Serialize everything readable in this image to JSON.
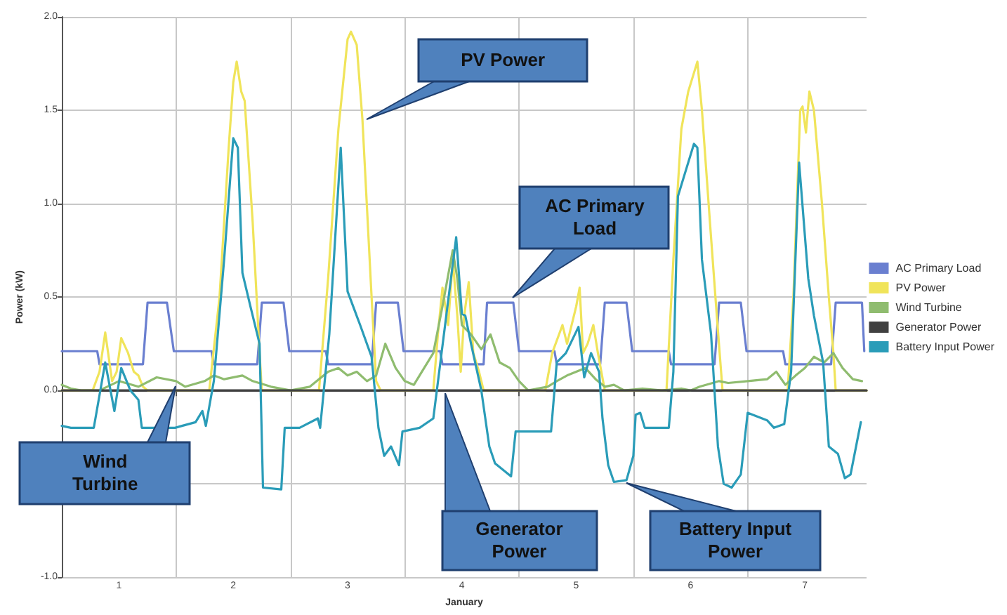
{
  "chart_data": {
    "type": "line",
    "xlabel": "January",
    "ylabel": "Power (kW)",
    "xlim": [
      0.5,
      7.54
    ],
    "xticks": [
      1,
      {
        "value": 1.5,
        "label": null
      },
      2,
      {
        "value": 2.5,
        "label": null
      },
      3,
      {
        "value": 3.5,
        "label": null
      },
      4,
      {
        "value": 4.5,
        "label": null
      },
      5,
      {
        "value": 5.5,
        "label": null
      },
      6,
      {
        "value": 6.5,
        "label": null
      },
      7
    ],
    "ylim": [
      -1,
      2
    ],
    "yticks": [
      {
        "value": -1,
        "label": "-1.0"
      },
      {
        "value": -0.5,
        "label": null
      },
      {
        "value": 0,
        "label": "0.0"
      },
      {
        "value": 0.5,
        "label": "0.5"
      },
      {
        "value": 1,
        "label": "1.0"
      },
      {
        "value": 1.5,
        "label": "1.5"
      },
      {
        "value": 2,
        "label": "2.0"
      }
    ],
    "grid": true,
    "legend": "right",
    "marker": "none",
    "line_style": "solid",
    "series": [
      {
        "name": "AC Primary Load",
        "color": "#6a7fd0",
        "x": [
          0.5,
          0.81,
          0.83,
          1.21,
          1.25,
          1.42,
          1.48,
          1.81,
          1.83,
          2.21,
          2.25,
          2.44,
          2.49,
          2.81,
          2.83,
          3.21,
          3.25,
          3.44,
          3.49,
          3.81,
          3.83,
          4.19,
          4.22,
          4.45,
          4.5,
          4.81,
          4.83,
          5.21,
          5.25,
          5.44,
          5.49,
          5.81,
          5.83,
          6.21,
          6.25,
          6.44,
          6.49,
          6.81,
          6.83,
          7.23,
          7.27,
          7.5,
          7.52
        ],
        "values": [
          0.21,
          0.21,
          0.14,
          0.14,
          0.47,
          0.47,
          0.21,
          0.21,
          0.14,
          0.14,
          0.47,
          0.47,
          0.21,
          0.21,
          0.14,
          0.14,
          0.47,
          0.47,
          0.21,
          0.21,
          0.14,
          0.14,
          0.47,
          0.47,
          0.21,
          0.21,
          0.14,
          0.14,
          0.47,
          0.47,
          0.21,
          0.21,
          0.14,
          0.14,
          0.47,
          0.47,
          0.21,
          0.21,
          0.14,
          0.14,
          0.47,
          0.47,
          0.21
        ]
      },
      {
        "name": "PV Power",
        "color": "#f0e45a",
        "x": [
          0.5,
          0.77,
          0.83,
          0.88,
          0.94,
          0.98,
          1.02,
          1.08,
          1.13,
          1.17,
          1.21,
          1.25,
          1.79,
          1.88,
          1.96,
          2.0,
          2.03,
          2.07,
          2.1,
          2.17,
          2.23,
          2.25,
          2.75,
          2.83,
          2.92,
          3.0,
          3.03,
          3.08,
          3.13,
          3.21,
          3.25,
          3.29,
          3.75,
          3.79,
          3.83,
          3.88,
          3.92,
          3.96,
          3.99,
          4.02,
          4.06,
          4.1,
          4.15,
          4.19,
          4.73,
          4.79,
          4.88,
          4.92,
          5.0,
          5.03,
          5.06,
          5.1,
          5.15,
          5.19,
          5.25,
          5.79,
          5.85,
          5.92,
          5.98,
          6.06,
          6.1,
          6.17,
          6.23,
          6.28,
          6.85,
          6.9,
          6.96,
          6.98,
          7.01,
          7.04,
          7.08,
          7.15,
          7.21,
          7.25,
          7.27,
          7.54
        ],
        "values": [
          0,
          0,
          0.1,
          0.31,
          0.05,
          0.1,
          0.28,
          0.2,
          0.1,
          0.08,
          0.02,
          0,
          0,
          0.5,
          1.3,
          1.65,
          1.76,
          1.6,
          1.55,
          0.9,
          0.2,
          0,
          0,
          0.6,
          1.4,
          1.88,
          1.92,
          1.85,
          1.45,
          0.5,
          0.05,
          0,
          0,
          0.3,
          0.55,
          0.35,
          0.7,
          0.4,
          0.1,
          0.4,
          0.58,
          0.2,
          0.1,
          0,
          0,
          0.2,
          0.35,
          0.25,
          0.45,
          0.55,
          0.2,
          0.25,
          0.35,
          0.2,
          0,
          0,
          0.7,
          1.4,
          1.6,
          1.76,
          1.5,
          0.9,
          0.4,
          0,
          0,
          0.5,
          1.5,
          1.52,
          1.38,
          1.6,
          1.5,
          1,
          0.5,
          0.2,
          0,
          0
        ]
      },
      {
        "name": "Wind Turbine",
        "color": "#8fbc6f",
        "x": [
          0.5,
          0.58,
          0.67,
          0.83,
          1,
          1.17,
          1.33,
          1.5,
          1.58,
          1.75,
          1.83,
          1.92,
          2.08,
          2.17,
          2.33,
          2.5,
          2.67,
          2.83,
          2.92,
          3,
          3.08,
          3.17,
          3.25,
          3.33,
          3.42,
          3.5,
          3.58,
          3.67,
          3.75,
          3.83,
          3.92,
          3.96,
          4,
          4.08,
          4.17,
          4.25,
          4.33,
          4.42,
          4.5,
          4.58,
          4.75,
          4.83,
          4.92,
          5,
          5.08,
          5.17,
          5.25,
          5.33,
          5.42,
          5.58,
          5.75,
          5.92,
          6,
          6.08,
          6.25,
          6.33,
          6.5,
          6.67,
          6.75,
          6.83,
          6.92,
          7,
          7.08,
          7.17,
          7.25,
          7.33,
          7.42,
          7.5
        ],
        "values": [
          0.03,
          0.01,
          0,
          0,
          0.05,
          0.02,
          0.07,
          0.05,
          0.02,
          0.05,
          0.08,
          0.06,
          0.08,
          0.05,
          0.02,
          0,
          0.02,
          0.1,
          0.12,
          0.08,
          0.1,
          0.05,
          0.08,
          0.25,
          0.12,
          0.05,
          0.03,
          0.12,
          0.2,
          0.45,
          0.75,
          0.6,
          0.35,
          0.3,
          0.22,
          0.3,
          0.15,
          0.12,
          0.05,
          0,
          0.02,
          0.05,
          0.08,
          0.1,
          0.12,
          0.06,
          0.02,
          0.03,
          0,
          0.01,
          0,
          0.01,
          0,
          0.02,
          0.05,
          0.04,
          0.05,
          0.06,
          0.1,
          0.03,
          0.08,
          0.12,
          0.18,
          0.15,
          0.2,
          0.12,
          0.06,
          0.05
        ]
      },
      {
        "name": "Generator Power",
        "color": "#404040",
        "x": [
          0.5,
          7.54
        ],
        "values": [
          0,
          0
        ]
      },
      {
        "name": "Battery Input Power",
        "color": "#2a9cb8",
        "x": [
          0.5,
          0.58,
          0.78,
          0.88,
          0.96,
          1.02,
          1.1,
          1.17,
          1.2,
          1.49,
          1.67,
          1.73,
          1.76,
          1.83,
          1.92,
          2.0,
          2.04,
          2.08,
          2.15,
          2.23,
          2.26,
          2.42,
          2.45,
          2.58,
          2.74,
          2.76,
          2.84,
          2.94,
          3.0,
          3.11,
          3.21,
          3.27,
          3.32,
          3.38,
          3.45,
          3.48,
          3.63,
          3.75,
          3.95,
          4.0,
          4.03,
          4.08,
          4.17,
          4.24,
          4.29,
          4.43,
          4.47,
          4.78,
          4.83,
          4.91,
          5.02,
          5.07,
          5.13,
          5.2,
          5.23,
          5.28,
          5.33,
          5.44,
          5.5,
          5.52,
          5.56,
          5.6,
          5.81,
          5.85,
          5.89,
          6.03,
          6.06,
          6.1,
          6.18,
          6.24,
          6.29,
          6.36,
          6.44,
          6.5,
          6.67,
          6.73,
          6.82,
          6.88,
          6.95,
          7.03,
          7.08,
          7.16,
          7.21,
          7.29,
          7.35,
          7.4,
          7.49
        ],
        "values": [
          -0.19,
          -0.2,
          -0.2,
          0.15,
          -0.11,
          0.12,
          0,
          -0.05,
          -0.2,
          -0.2,
          -0.17,
          -0.11,
          -0.19,
          0.05,
          0.7,
          1.35,
          1.3,
          0.63,
          0.45,
          0.25,
          -0.52,
          -0.53,
          -0.2,
          -0.2,
          -0.15,
          -0.2,
          0.3,
          1.3,
          0.53,
          0.35,
          0.18,
          -0.2,
          -0.35,
          -0.3,
          -0.4,
          -0.22,
          -0.2,
          -0.15,
          0.82,
          0.41,
          0.4,
          0.25,
          0,
          -0.3,
          -0.39,
          -0.46,
          -0.22,
          -0.22,
          0.15,
          0.2,
          0.34,
          0.07,
          0.2,
          0.1,
          -0.15,
          -0.4,
          -0.49,
          -0.48,
          -0.35,
          -0.13,
          -0.12,
          -0.2,
          -0.2,
          0.1,
          1.04,
          1.32,
          1.3,
          0.7,
          0.3,
          -0.3,
          -0.5,
          -0.52,
          -0.45,
          -0.12,
          -0.16,
          -0.2,
          -0.18,
          0.1,
          1.22,
          0.6,
          0.4,
          0.15,
          -0.3,
          -0.34,
          -0.47,
          -0.45,
          -0.17
        ]
      }
    ]
  }
}
